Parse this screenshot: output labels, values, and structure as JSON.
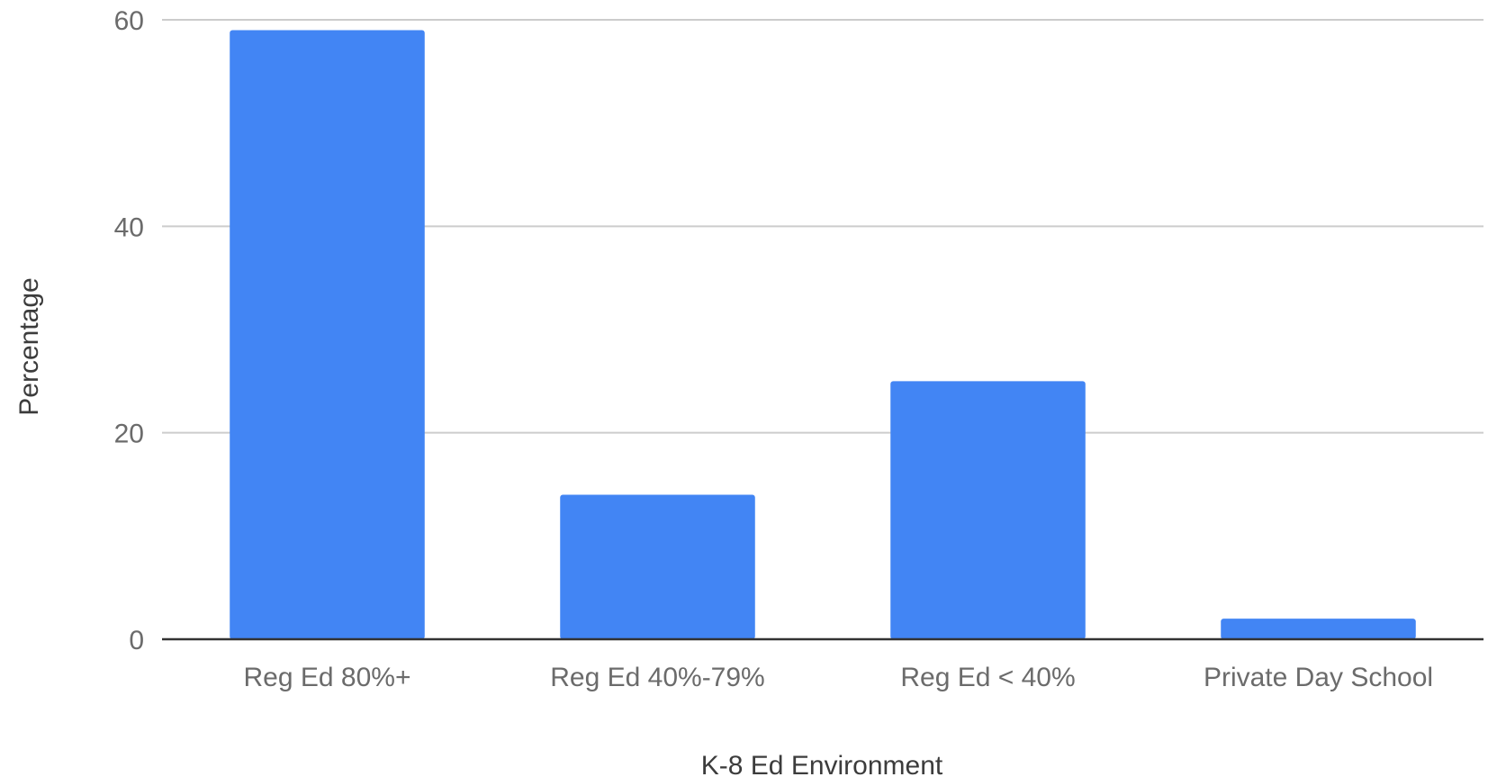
{
  "chart_data": {
    "type": "bar",
    "title": "",
    "xlabel": "K-8 Ed Environment",
    "ylabel": "Percentage",
    "categories": [
      "Reg Ed 80%+",
      "Reg Ed 40%-79%",
      "Reg Ed < 40%",
      "Private Day School"
    ],
    "series": [
      {
        "values": [
          59,
          14,
          25,
          2
        ]
      }
    ],
    "ylim": [
      0,
      60
    ],
    "yticks": [
      0,
      20,
      40,
      60
    ],
    "grid": true,
    "legend": "none",
    "colors": {
      "bar": "#4285f4",
      "grid": "#cccccc",
      "baseline": "#333333"
    }
  }
}
